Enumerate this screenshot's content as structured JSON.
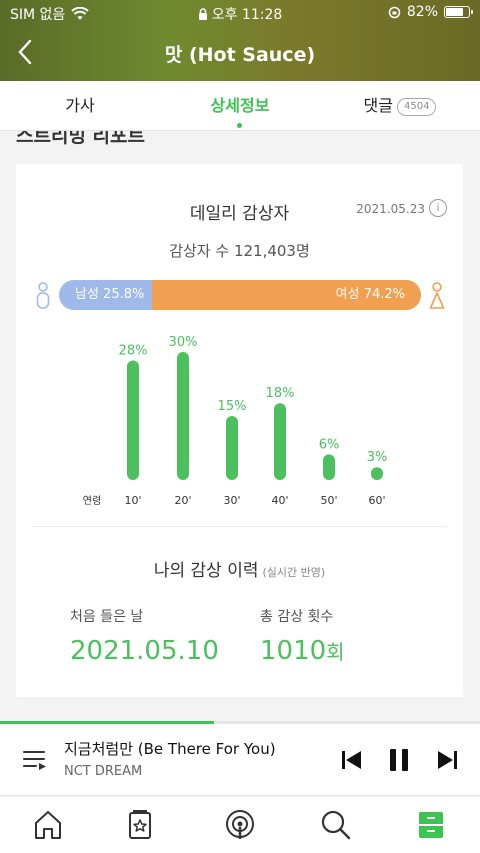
{
  "status": {
    "carrier": "SIM 없음",
    "time": "오후 11:28",
    "battery": "82%",
    "battery_level": 0.82
  },
  "header": {
    "title": "맛 (Hot Sauce)"
  },
  "tabs": [
    {
      "label": "가사"
    },
    {
      "label": "상세정보"
    },
    {
      "label": "댓글",
      "badge": "4504"
    }
  ],
  "section": {
    "title": "스트리밍 리포트"
  },
  "card": {
    "title": "데일리 감상자",
    "date": "2021.05.23",
    "info": "i",
    "listener_count": "감상자 수 121,403명",
    "gender": {
      "male_label": "남성 25.8%",
      "female_label": "여성 74.2%",
      "male_ratio": 0.258
    }
  },
  "chart_data": {
    "type": "bar",
    "xlabel": "연령",
    "categories": [
      "10'",
      "20'",
      "30'",
      "40'",
      "50'",
      "60'"
    ],
    "values": [
      28,
      30,
      15,
      18,
      6,
      3
    ],
    "value_labels": [
      "28%",
      "30%",
      "15%",
      "18%",
      "6%",
      "3%"
    ],
    "ylim": [
      0,
      30
    ],
    "color": "#4dc05e"
  },
  "history": {
    "title": "나의 감상 이력",
    "subtitle": "(실시간 반영)",
    "first_label": "처음 들은 날",
    "first_value": "2021.05.10",
    "count_label": "총 감상 횟수",
    "count_value": "1010",
    "count_unit": "회"
  },
  "playback": {
    "progress": 0.445
  },
  "player": {
    "song": "지금처럼만 (Be There For You)",
    "artist": "NCT DREAM"
  },
  "colors": {
    "accent": "#3ec353",
    "male": "#9fb9ea",
    "female": "#f0a050"
  },
  "nav": [
    "home-icon",
    "music-card-icon",
    "podcast-icon",
    "search-icon",
    "storage-icon"
  ]
}
